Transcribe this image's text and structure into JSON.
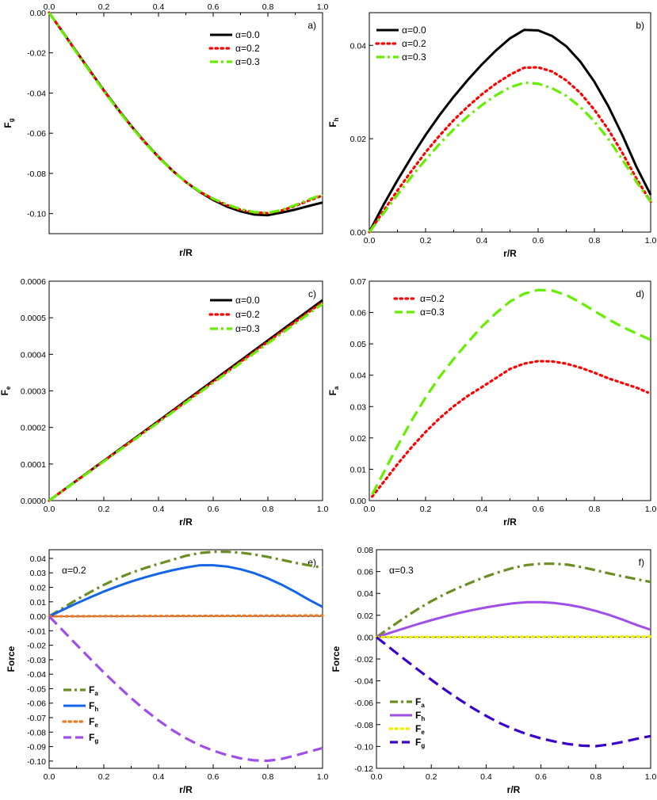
{
  "chart_data": [
    {
      "type": "line",
      "panel_label": "a)",
      "xlabel": "r/R",
      "ylabel": "F",
      "ylabel_sub": "g",
      "xlim": [
        0,
        1
      ],
      "ylim": [
        -0.11,
        0
      ],
      "x_ticks": [
        "0.0",
        "0.2",
        "0.4",
        "0.6",
        "0.8",
        "1.0"
      ],
      "y_ticks": [
        "0.00",
        "-0.02",
        "-0.04",
        "-0.06",
        "-0.08",
        "-0.10"
      ],
      "legend": [
        "α=0.0",
        "α=0.2",
        "α=0.3"
      ],
      "series": [
        {
          "name": "α=0.0",
          "color": "#000000",
          "style": "solid",
          "x": [
            0,
            0.05,
            0.1,
            0.15,
            0.2,
            0.25,
            0.3,
            0.35,
            0.4,
            0.45,
            0.5,
            0.55,
            0.6,
            0.65,
            0.7,
            0.75,
            0.8,
            0.85,
            0.9,
            0.95,
            1.0
          ],
          "y": [
            0,
            -0.0097,
            -0.0194,
            -0.0291,
            -0.0386,
            -0.0477,
            -0.0563,
            -0.0644,
            -0.0718,
            -0.0785,
            -0.0843,
            -0.0892,
            -0.0932,
            -0.0965,
            -0.0989,
            -0.1005,
            -0.1008,
            -0.0995,
            -0.098,
            -0.0962,
            -0.0945
          ]
        },
        {
          "name": "α=0.2",
          "color": "#ff0000",
          "style": "dotted",
          "x": [
            0,
            0.05,
            0.1,
            0.15,
            0.2,
            0.25,
            0.3,
            0.35,
            0.4,
            0.45,
            0.5,
            0.55,
            0.6,
            0.65,
            0.7,
            0.75,
            0.8,
            0.85,
            0.9,
            0.95,
            1.0
          ],
          "y": [
            0,
            -0.0098,
            -0.0196,
            -0.0293,
            -0.0388,
            -0.0479,
            -0.0565,
            -0.0646,
            -0.0719,
            -0.0785,
            -0.0842,
            -0.089,
            -0.0928,
            -0.0958,
            -0.0981,
            -0.0995,
            -0.0998,
            -0.0985,
            -0.0962,
            -0.0935,
            -0.091
          ]
        },
        {
          "name": "α=0.3",
          "color": "#66ee00",
          "style": "dashdot",
          "x": [
            0,
            0.05,
            0.1,
            0.15,
            0.2,
            0.25,
            0.3,
            0.35,
            0.4,
            0.45,
            0.5,
            0.55,
            0.6,
            0.65,
            0.7,
            0.75,
            0.8,
            0.85,
            0.9,
            0.95,
            1.0
          ],
          "y": [
            0,
            -0.0099,
            -0.0198,
            -0.0295,
            -0.039,
            -0.0481,
            -0.0567,
            -0.0647,
            -0.072,
            -0.0786,
            -0.0842,
            -0.0889,
            -0.0926,
            -0.0955,
            -0.0978,
            -0.0993,
            -0.0997,
            -0.0982,
            -0.0958,
            -0.093,
            -0.0905
          ]
        }
      ]
    },
    {
      "type": "line",
      "panel_label": "b)",
      "xlabel": "r/R",
      "ylabel": "F",
      "ylabel_sub": "h",
      "xlim": [
        0,
        1
      ],
      "ylim": [
        0,
        0.047
      ],
      "x_ticks": [
        "0.0",
        "0.2",
        "0.4",
        "0.6",
        "0.8",
        "1.0"
      ],
      "y_ticks": [
        "0.00",
        "0.02",
        "0.04"
      ],
      "legend": [
        "α=0.0",
        "α=0.2",
        "α=0.3"
      ],
      "series": [
        {
          "name": "α=0.0",
          "color": "#000000",
          "style": "solid",
          "x": [
            0,
            0.05,
            0.1,
            0.15,
            0.2,
            0.25,
            0.3,
            0.35,
            0.4,
            0.45,
            0.5,
            0.55,
            0.6,
            0.65,
            0.7,
            0.75,
            0.8,
            0.85,
            0.9,
            0.95,
            1.0
          ],
          "y": [
            0,
            0.0058,
            0.0111,
            0.0161,
            0.0208,
            0.0251,
            0.029,
            0.0326,
            0.0359,
            0.0389,
            0.0415,
            0.0433,
            0.0432,
            0.042,
            0.0398,
            0.0365,
            0.0322,
            0.0269,
            0.0207,
            0.0139,
            0.008
          ]
        },
        {
          "name": "α=0.2",
          "color": "#ff0000",
          "style": "dotted",
          "x": [
            0,
            0.05,
            0.1,
            0.15,
            0.2,
            0.25,
            0.3,
            0.35,
            0.4,
            0.45,
            0.5,
            0.55,
            0.6,
            0.65,
            0.7,
            0.75,
            0.8,
            0.85,
            0.9,
            0.95,
            1.0
          ],
          "y": [
            0,
            0.0045,
            0.0089,
            0.0131,
            0.0171,
            0.0207,
            0.024,
            0.0269,
            0.0295,
            0.0318,
            0.0337,
            0.0352,
            0.0353,
            0.0344,
            0.0325,
            0.0298,
            0.0262,
            0.0219,
            0.0169,
            0.0114,
            0.0065
          ]
        },
        {
          "name": "α=0.3",
          "color": "#66ee00",
          "style": "dashdot",
          "x": [
            0,
            0.05,
            0.1,
            0.15,
            0.2,
            0.25,
            0.3,
            0.35,
            0.4,
            0.45,
            0.5,
            0.55,
            0.6,
            0.65,
            0.7,
            0.75,
            0.8,
            0.85,
            0.9,
            0.95,
            1.0
          ],
          "y": [
            0,
            0.004,
            0.008,
            0.0119,
            0.0155,
            0.0189,
            0.022,
            0.0248,
            0.0272,
            0.0293,
            0.031,
            0.032,
            0.0318,
            0.0308,
            0.0292,
            0.0268,
            0.0237,
            0.0199,
            0.0155,
            0.0107,
            0.0065
          ]
        }
      ]
    },
    {
      "type": "line",
      "panel_label": "c)",
      "xlabel": "r/R",
      "ylabel": "F",
      "ylabel_sub": "e",
      "xlim": [
        0,
        1
      ],
      "ylim": [
        0,
        0.0006
      ],
      "x_ticks": [
        "0.0",
        "0.2",
        "0.4",
        "0.6",
        "0.8",
        "1.0"
      ],
      "y_ticks": [
        "0.0000",
        "0.0001",
        "0.0002",
        "0.0003",
        "0.0004",
        "0.0005",
        "0.0006"
      ],
      "legend": [
        "α=0.0",
        "α=0.2",
        "α=0.3"
      ],
      "series": [
        {
          "name": "α=0.0",
          "color": "#000000",
          "style": "solid",
          "x": [
            0,
            0.2,
            0.4,
            0.6,
            0.8,
            1.0
          ],
          "y": [
            0,
            0.000109,
            0.000218,
            0.000328,
            0.000438,
            0.000548
          ]
        },
        {
          "name": "α=0.2",
          "color": "#ff0000",
          "style": "dotted",
          "x": [
            0,
            0.2,
            0.4,
            0.6,
            0.8,
            1.0
          ],
          "y": [
            0,
            0.000108,
            0.000216,
            0.000325,
            0.000434,
            0.000543
          ]
        },
        {
          "name": "α=0.3",
          "color": "#66ee00",
          "style": "dashdot",
          "x": [
            0,
            0.2,
            0.4,
            0.6,
            0.8,
            1.0
          ],
          "y": [
            0,
            0.000107,
            0.000214,
            0.000322,
            0.00043,
            0.000538
          ]
        }
      ]
    },
    {
      "type": "line",
      "panel_label": "d)",
      "xlabel": "r/R",
      "ylabel": "F",
      "ylabel_sub": "a",
      "xlim": [
        0,
        1
      ],
      "ylim": [
        0,
        0.07
      ],
      "x_ticks": [
        "0.0",
        "0.2",
        "0.4",
        "0.6",
        "0.8",
        "1.0"
      ],
      "y_ticks": [
        "0.00",
        "0.01",
        "0.02",
        "0.03",
        "0.04",
        "0.05",
        "0.06",
        "0.07"
      ],
      "legend": [
        "α=0.2",
        "α=0.3"
      ],
      "series": [
        {
          "name": "α=0.2",
          "color": "#ff0000",
          "style": "dotted",
          "x": [
            0.01,
            0.05,
            0.1,
            0.15,
            0.2,
            0.25,
            0.3,
            0.35,
            0.4,
            0.45,
            0.5,
            0.55,
            0.6,
            0.65,
            0.7,
            0.75,
            0.8,
            0.85,
            0.9,
            0.95,
            0.99
          ],
          "y": [
            0.0013,
            0.0058,
            0.0116,
            0.017,
            0.0219,
            0.0263,
            0.0301,
            0.0334,
            0.0362,
            0.0391,
            0.042,
            0.0437,
            0.0445,
            0.0444,
            0.0437,
            0.0424,
            0.0408,
            0.039,
            0.0375,
            0.036,
            0.0345
          ]
        },
        {
          "name": "α=0.3",
          "color": "#66ee00",
          "style": "dashed",
          "x": [
            0.01,
            0.05,
            0.1,
            0.15,
            0.2,
            0.25,
            0.3,
            0.35,
            0.4,
            0.45,
            0.5,
            0.55,
            0.6,
            0.65,
            0.7,
            0.75,
            0.8,
            0.85,
            0.9,
            0.95,
            1.0
          ],
          "y": [
            0.002,
            0.0088,
            0.0174,
            0.0255,
            0.0329,
            0.0395,
            0.0452,
            0.0505,
            0.0555,
            0.0598,
            0.0635,
            0.066,
            0.0672,
            0.067,
            0.0656,
            0.0632,
            0.0605,
            0.0578,
            0.0554,
            0.0533,
            0.0513
          ]
        }
      ]
    },
    {
      "type": "line",
      "panel_label": "e)",
      "annotation": "α=0.2",
      "xlabel": "r/R",
      "ylabel": "Force",
      "xlim": [
        0,
        1
      ],
      "ylim": [
        -0.105,
        0.046
      ],
      "x_ticks": [
        "0.0",
        "0.2",
        "0.4",
        "0.6",
        "0.8",
        "1.0"
      ],
      "y_ticks": [
        "0.04",
        "0.03",
        "0.02",
        "0.01",
        "0.00",
        "-0.01",
        "-0.02",
        "-0.03",
        "-0.04",
        "-0.05",
        "-0.06",
        "-0.07",
        "-0.08",
        "-0.09",
        "-0.10"
      ],
      "legend": [
        {
          "label": "F",
          "sub": "a"
        },
        {
          "label": "F",
          "sub": "h"
        },
        {
          "label": "F",
          "sub": "e"
        },
        {
          "label": "F",
          "sub": "g"
        }
      ],
      "series": [
        {
          "name": "Fa",
          "color": "#6b8e23",
          "style": "dashdot",
          "x": [
            0,
            0.05,
            0.1,
            0.15,
            0.2,
            0.25,
            0.3,
            0.35,
            0.4,
            0.45,
            0.5,
            0.55,
            0.6,
            0.65,
            0.7,
            0.75,
            0.8,
            0.85,
            0.9,
            0.95,
            1.0
          ],
          "y": [
            0,
            0.0057,
            0.0114,
            0.0167,
            0.0217,
            0.0262,
            0.03,
            0.0333,
            0.0362,
            0.039,
            0.0418,
            0.0437,
            0.0445,
            0.0446,
            0.044,
            0.0427,
            0.041,
            0.039,
            0.037,
            0.0352,
            0.0335
          ]
        },
        {
          "name": "Fh",
          "color": "#1565e8",
          "style": "solid",
          "x": [
            0,
            0.05,
            0.1,
            0.15,
            0.2,
            0.25,
            0.3,
            0.35,
            0.4,
            0.45,
            0.5,
            0.55,
            0.6,
            0.65,
            0.7,
            0.75,
            0.8,
            0.85,
            0.9,
            0.95,
            1.0
          ],
          "y": [
            0,
            0.0045,
            0.0089,
            0.0131,
            0.0171,
            0.0207,
            0.024,
            0.0269,
            0.0295,
            0.0318,
            0.0337,
            0.0352,
            0.0353,
            0.0344,
            0.0325,
            0.0298,
            0.0262,
            0.0219,
            0.0169,
            0.0114,
            0.0065
          ]
        },
        {
          "name": "Fe",
          "color": "#f07820",
          "style": "dotted",
          "x": [
            0,
            0.5,
            1.0
          ],
          "y": [
            0,
            0.00027,
            0.00054
          ]
        },
        {
          "name": "Fg",
          "color": "#a04ee8",
          "style": "dashed",
          "x": [
            0,
            0.05,
            0.1,
            0.15,
            0.2,
            0.25,
            0.3,
            0.35,
            0.4,
            0.45,
            0.5,
            0.55,
            0.6,
            0.65,
            0.7,
            0.75,
            0.8,
            0.85,
            0.9,
            0.95,
            1.0
          ],
          "y": [
            0,
            -0.0098,
            -0.0196,
            -0.0293,
            -0.0388,
            -0.0479,
            -0.0565,
            -0.0646,
            -0.0719,
            -0.0785,
            -0.0842,
            -0.089,
            -0.0928,
            -0.0958,
            -0.0981,
            -0.0995,
            -0.0998,
            -0.0985,
            -0.0962,
            -0.0935,
            -0.091
          ]
        }
      ]
    },
    {
      "type": "line",
      "panel_label": "f)",
      "annotation": "α=0.3",
      "xlabel": "r/R",
      "ylabel": "Force",
      "xlim": [
        0,
        1
      ],
      "ylim": [
        -0.12,
        0.08
      ],
      "x_ticks": [
        "0.0",
        "0.2",
        "0.4",
        "0.6",
        "0.8",
        "1.0"
      ],
      "y_ticks": [
        "0.08",
        "0.06",
        "0.04",
        "0.02",
        "0.00",
        "-0.02",
        "-0.04",
        "-0.06",
        "-0.08",
        "-0.10",
        "-0.12"
      ],
      "legend": [
        {
          "label": "F",
          "sub": "a"
        },
        {
          "label": "F",
          "sub": "h"
        },
        {
          "label": "F",
          "sub": "e"
        },
        {
          "label": "F",
          "sub": "g"
        }
      ],
      "series": [
        {
          "name": "Fa",
          "color": "#6b8e23",
          "style": "dashdot",
          "x": [
            0,
            0.05,
            0.1,
            0.15,
            0.2,
            0.25,
            0.3,
            0.35,
            0.4,
            0.45,
            0.5,
            0.55,
            0.6,
            0.65,
            0.7,
            0.75,
            0.8,
            0.85,
            0.9,
            0.95,
            1.0
          ],
          "y": [
            0,
            0.0088,
            0.0174,
            0.0255,
            0.0329,
            0.0395,
            0.0452,
            0.0505,
            0.0555,
            0.0598,
            0.0635,
            0.066,
            0.0672,
            0.0672,
            0.0662,
            0.064,
            0.0612,
            0.0582,
            0.0555,
            0.053,
            0.0505
          ]
        },
        {
          "name": "Fh",
          "color": "#a04ee8",
          "style": "solid",
          "x": [
            0,
            0.05,
            0.1,
            0.15,
            0.2,
            0.25,
            0.3,
            0.35,
            0.4,
            0.45,
            0.5,
            0.55,
            0.6,
            0.65,
            0.7,
            0.75,
            0.8,
            0.85,
            0.9,
            0.95,
            1.0
          ],
          "y": [
            0,
            0.004,
            0.008,
            0.0119,
            0.0155,
            0.0189,
            0.022,
            0.0248,
            0.0272,
            0.0293,
            0.031,
            0.032,
            0.032,
            0.0312,
            0.0296,
            0.0272,
            0.024,
            0.0202,
            0.0158,
            0.011,
            0.0068
          ]
        },
        {
          "name": "Fe",
          "color": "#eeee00",
          "style": "dotted",
          "x": [
            0,
            0.5,
            1.0
          ],
          "y": [
            0,
            0.00027,
            0.00054
          ]
        },
        {
          "name": "Fg",
          "color": "#3a00cc",
          "style": "dashed",
          "x": [
            0,
            0.05,
            0.1,
            0.15,
            0.2,
            0.25,
            0.3,
            0.35,
            0.4,
            0.45,
            0.5,
            0.55,
            0.6,
            0.65,
            0.7,
            0.75,
            0.8,
            0.85,
            0.9,
            0.95,
            1.0
          ],
          "y": [
            0,
            -0.0099,
            -0.0198,
            -0.0295,
            -0.039,
            -0.0481,
            -0.0567,
            -0.0647,
            -0.072,
            -0.0786,
            -0.0842,
            -0.0889,
            -0.0926,
            -0.0955,
            -0.0978,
            -0.0993,
            -0.0997,
            -0.0982,
            -0.0958,
            -0.093,
            -0.0905
          ]
        }
      ]
    }
  ]
}
